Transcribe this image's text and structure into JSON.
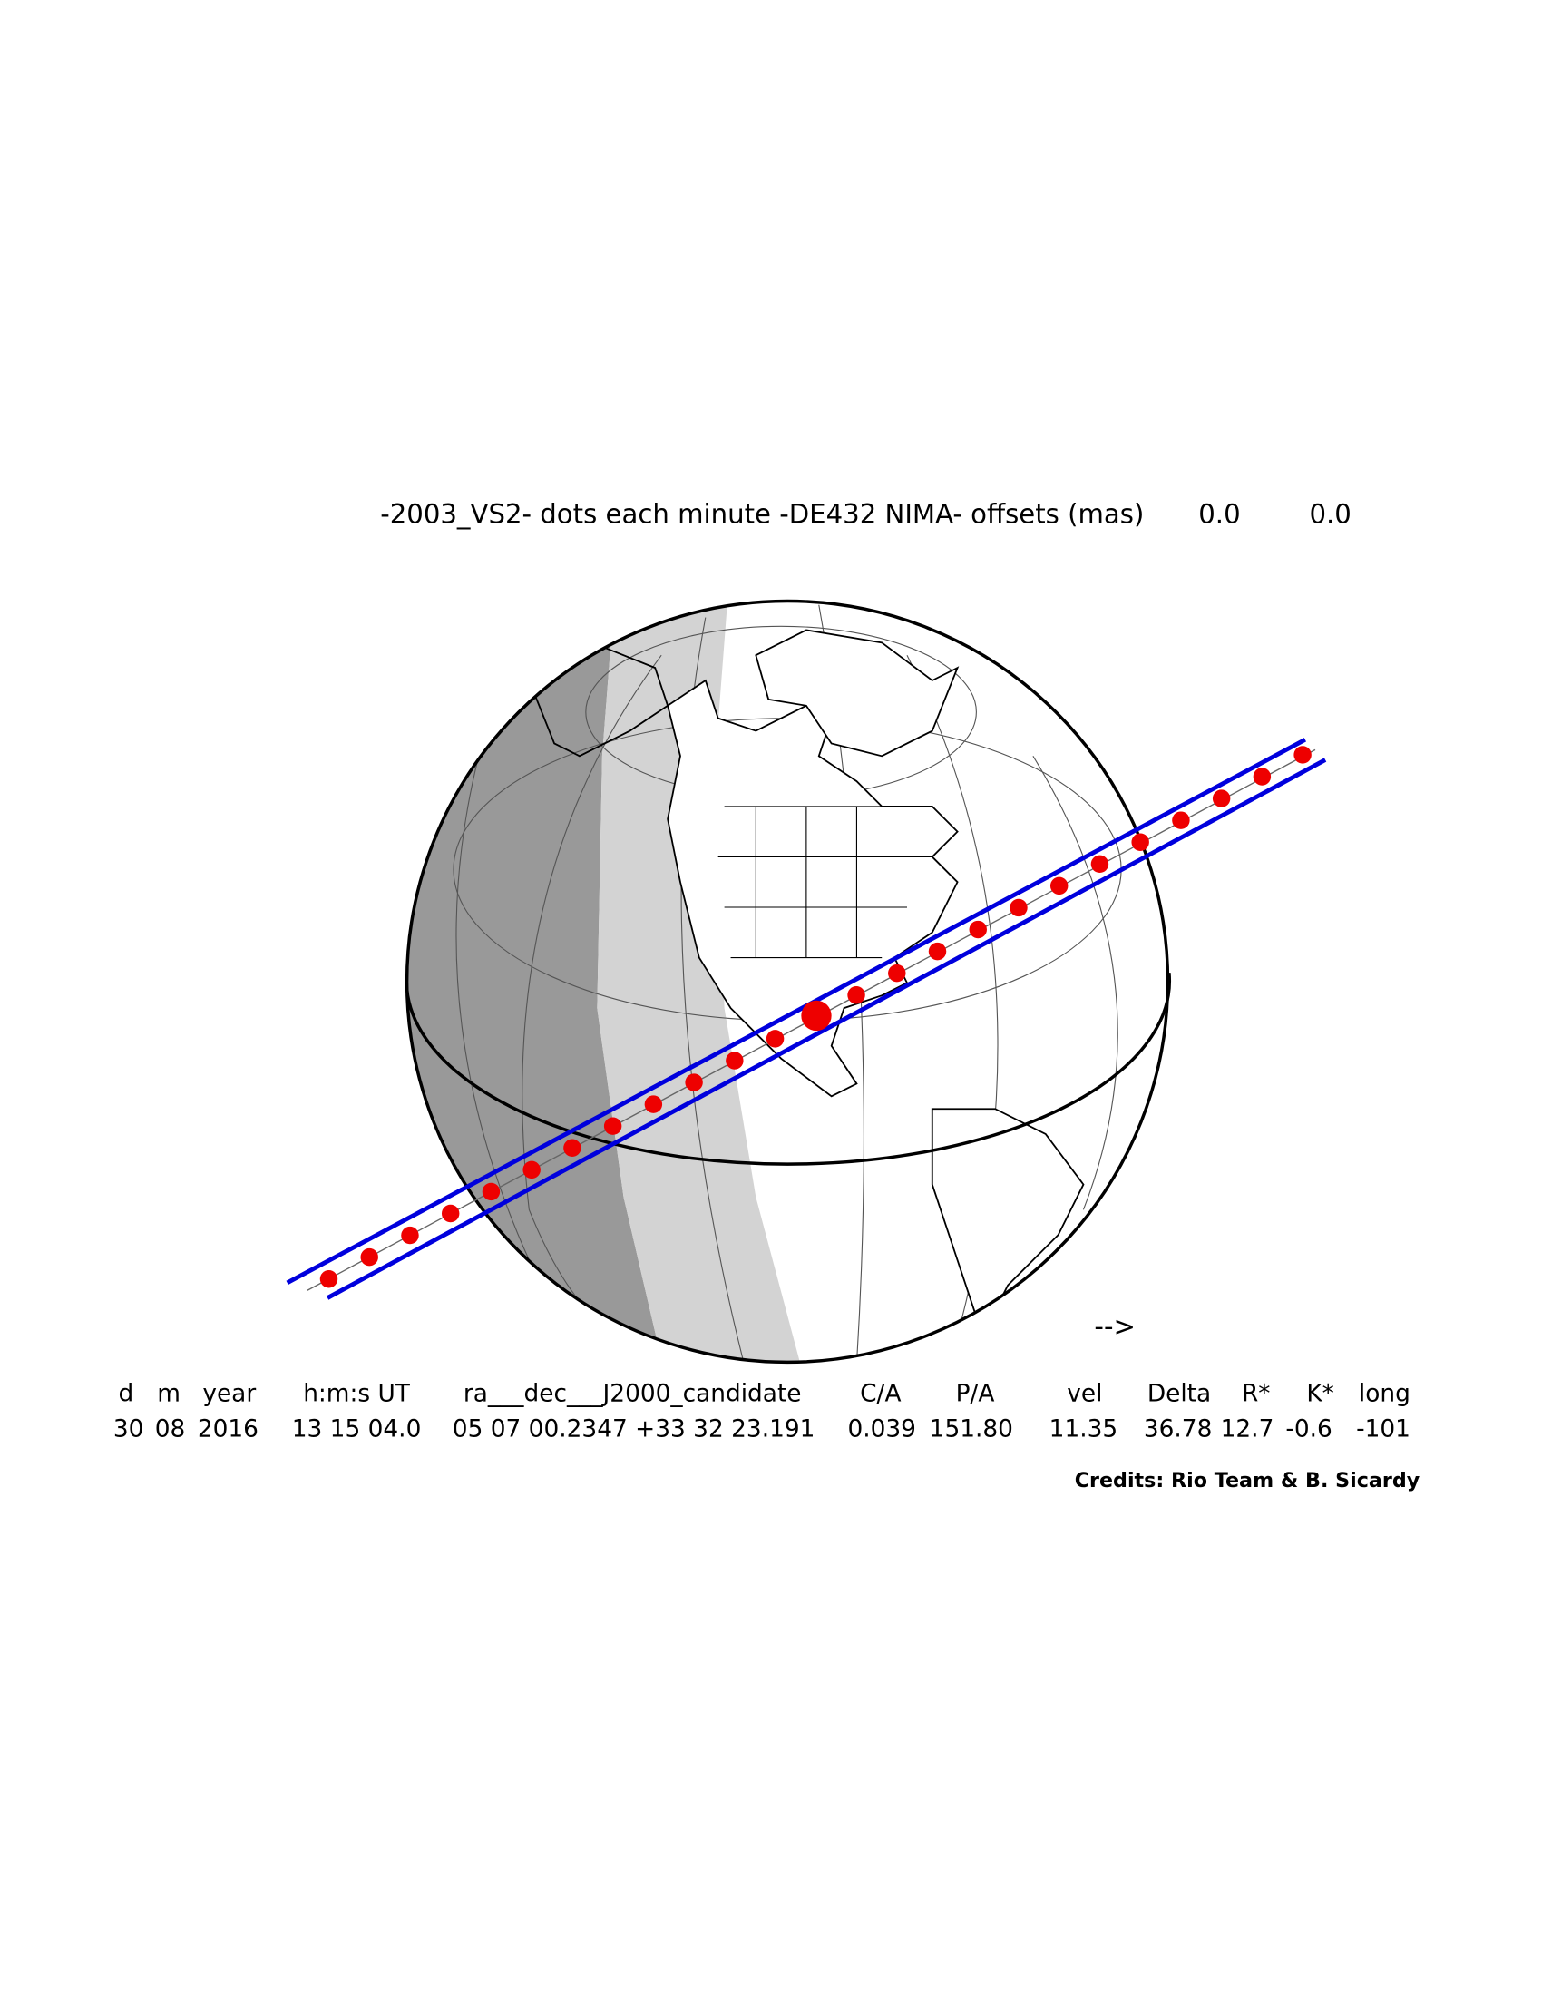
{
  "header": {
    "title": "-2003_VS2- dots each minute -DE432 NIMA- offsets (mas)",
    "offsets": [
      "0.0",
      "0.0"
    ]
  },
  "direction": "-->",
  "table": {
    "headers": [
      "d",
      "m",
      "year",
      "h:m:s UT",
      "ra___dec___J2000_candidate",
      "C/A",
      "P/A",
      "vel",
      "Delta",
      "R*",
      "K*",
      "long"
    ],
    "values": [
      "30",
      "08",
      "2016",
      "13 15 04.0",
      "05 07 00.2347 +33 32 23.191",
      "0.039",
      "151.80",
      "11.35",
      "36.78",
      "12.7",
      "-0.6",
      "-101"
    ]
  },
  "credits": "Credits: Rio Team & B. Sicardy"
}
